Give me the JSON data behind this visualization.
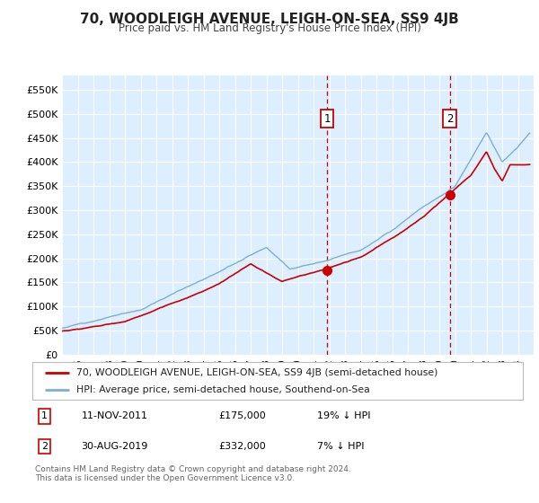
{
  "title": "70, WOODLEIGH AVENUE, LEIGH-ON-SEA, SS9 4JB",
  "subtitle": "Price paid vs. HM Land Registry's House Price Index (HPI)",
  "legend_property": "70, WOODLEIGH AVENUE, LEIGH-ON-SEA, SS9 4JB (semi-detached house)",
  "legend_hpi": "HPI: Average price, semi-detached house, Southend-on-Sea",
  "property_color": "#cc0000",
  "hpi_color": "#7ab0d4",
  "background_color": "#ddeeff",
  "annotation1_date": "11-NOV-2011",
  "annotation1_price": "£175,000",
  "annotation1_hpi": "19% ↓ HPI",
  "annotation1_year": 2011.86,
  "annotation1_value": 175000,
  "annotation2_date": "30-AUG-2019",
  "annotation2_price": "£332,000",
  "annotation2_hpi": "7% ↓ HPI",
  "annotation2_year": 2019.66,
  "annotation2_value": 332000,
  "footnote": "Contains HM Land Registry data © Crown copyright and database right 2024.\nThis data is licensed under the Open Government Licence v3.0.",
  "ylim": [
    0,
    580000
  ],
  "yticks": [
    0,
    50000,
    100000,
    150000,
    200000,
    250000,
    300000,
    350000,
    400000,
    450000,
    500000,
    550000
  ],
  "ytick_labels": [
    "£0",
    "£50K",
    "£100K",
    "£150K",
    "£200K",
    "£250K",
    "£300K",
    "£350K",
    "£400K",
    "£450K",
    "£500K",
    "£550K"
  ],
  "xlim_start": 1995,
  "xlim_end": 2025
}
